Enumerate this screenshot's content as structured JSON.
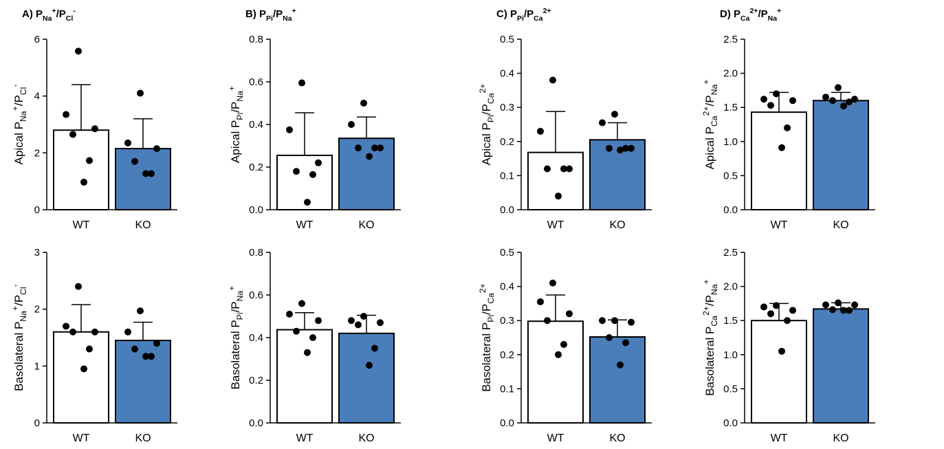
{
  "colors": {
    "wt_fill": "#ffffff",
    "ko_fill": "#4a7ebb",
    "stroke": "#000000",
    "point": "#000000"
  },
  "chart_data": [
    {
      "type": "bar",
      "panel_letter": "A)",
      "row": "Apical",
      "title": [
        [
          "P",
          ""
        ],
        [
          "Na",
          "sub"
        ],
        [
          "+",
          "sup"
        ],
        [
          "/P",
          ""
        ],
        [
          "Cl",
          "sub"
        ],
        [
          "-",
          "sup"
        ]
      ],
      "ylabel": [
        [
          "Apical P",
          ""
        ],
        [
          "Na",
          "sub"
        ],
        [
          "+",
          "sup"
        ],
        [
          "/P",
          ""
        ],
        [
          "Cl",
          "sub"
        ],
        [
          "-",
          "sup"
        ]
      ],
      "categories": [
        "WT",
        "KO"
      ],
      "ylim": [
        0,
        6
      ],
      "yticks": [
        "0",
        "2",
        "4",
        "6"
      ],
      "bar_values": [
        2.8,
        2.15
      ],
      "error_sd": [
        1.6,
        1.05
      ],
      "points": [
        [
          5.58,
          3.35,
          2.85,
          2.65,
          1.73,
          0.97
        ],
        [
          4.1,
          2.35,
          2.15,
          1.7,
          1.27,
          1.27
        ]
      ]
    },
    {
      "type": "bar",
      "panel_letter": "B)",
      "row": "Apical",
      "title": [
        [
          "P",
          ""
        ],
        [
          "Pi",
          "sub"
        ],
        [
          "/P",
          ""
        ],
        [
          "Na",
          "sub"
        ],
        [
          "+",
          "sup"
        ]
      ],
      "ylabel": [
        [
          "Apical P",
          ""
        ],
        [
          "Pi",
          "sub"
        ],
        [
          "/P",
          ""
        ],
        [
          "Na",
          "sub"
        ],
        [
          "+",
          "sup"
        ]
      ],
      "categories": [
        "WT",
        "KO"
      ],
      "ylim": [
        0,
        0.8
      ],
      "yticks": [
        "0.0",
        "0.2",
        "0.4",
        "0.6",
        "0.8"
      ],
      "bar_values": [
        0.255,
        0.335
      ],
      "error_sd": [
        0.2,
        0.1
      ],
      "points": [
        [
          0.595,
          0.375,
          0.22,
          0.18,
          0.165,
          0.035
        ],
        [
          0.5,
          0.4,
          0.29,
          0.29,
          0.29,
          0.25
        ]
      ]
    },
    {
      "type": "bar",
      "panel_letter": "C)",
      "row": "Apical",
      "title": [
        [
          "P",
          ""
        ],
        [
          "Pi",
          "sub"
        ],
        [
          "/P",
          ""
        ],
        [
          "Ca",
          "sub"
        ],
        [
          "2+",
          "sup"
        ]
      ],
      "ylabel": [
        [
          "Apical P",
          ""
        ],
        [
          "Pi",
          "sub"
        ],
        [
          "/P",
          ""
        ],
        [
          "Ca",
          "sub"
        ],
        [
          "2+",
          "sup"
        ]
      ],
      "categories": [
        "WT",
        "KO"
      ],
      "ylim": [
        0,
        0.5
      ],
      "yticks": [
        "0.0",
        "0.1",
        "0.2",
        "0.3",
        "0.4",
        "0.5"
      ],
      "bar_values": [
        0.168,
        0.205
      ],
      "error_sd": [
        0.12,
        0.05
      ],
      "points": [
        [
          0.38,
          0.23,
          0.12,
          0.12,
          0.12,
          0.04
        ],
        [
          0.28,
          0.255,
          0.18,
          0.18,
          0.18,
          0.175
        ]
      ]
    },
    {
      "type": "bar",
      "panel_letter": "D)",
      "row": "Apical",
      "title": [
        [
          "P",
          ""
        ],
        [
          "Ca",
          "sub"
        ],
        [
          "2+",
          "sup"
        ],
        [
          "/P",
          ""
        ],
        [
          "Na",
          "sub"
        ],
        [
          "+",
          "sup"
        ]
      ],
      "ylabel": [
        [
          "Apical P",
          ""
        ],
        [
          "Ca",
          "sub"
        ],
        [
          "2+",
          "sup"
        ],
        [
          "/P",
          ""
        ],
        [
          "Na",
          "sub"
        ],
        [
          "+",
          "sup"
        ]
      ],
      "categories": [
        "WT",
        "KO"
      ],
      "ylim": [
        0,
        2.5
      ],
      "yticks": [
        "0.0",
        "0.5",
        "1.0",
        "1.5",
        "2.0",
        "2.5"
      ],
      "bar_values": [
        1.43,
        1.6
      ],
      "error_sd": [
        0.29,
        0.12
      ],
      "points": [
        [
          1.7,
          1.62,
          1.6,
          1.53,
          1.2,
          0.91
        ],
        [
          1.79,
          1.65,
          1.62,
          1.6,
          1.58,
          1.52
        ]
      ]
    },
    {
      "type": "bar",
      "panel_letter": "",
      "row": "Basolateral",
      "title": [],
      "ylabel": [
        [
          "Basolateral P",
          ""
        ],
        [
          "Na",
          "sub"
        ],
        [
          "+",
          "sup"
        ],
        [
          "/P",
          ""
        ],
        [
          "Cl",
          "sub"
        ],
        [
          "-",
          "sup"
        ]
      ],
      "categories": [
        "WT",
        "KO"
      ],
      "ylim": [
        0,
        3
      ],
      "yticks": [
        "0",
        "1",
        "2",
        "3"
      ],
      "bar_values": [
        1.6,
        1.45
      ],
      "error_sd": [
        0.48,
        0.32
      ],
      "points": [
        [
          2.4,
          1.7,
          1.6,
          1.6,
          1.3,
          0.95
        ],
        [
          1.97,
          1.6,
          1.4,
          1.3,
          1.17,
          1.17
        ]
      ]
    },
    {
      "type": "bar",
      "panel_letter": "",
      "row": "Basolateral",
      "title": [],
      "ylabel": [
        [
          "Basolateral P",
          ""
        ],
        [
          "Pi",
          "sub"
        ],
        [
          "/P",
          ""
        ],
        [
          "Na",
          "sub"
        ],
        [
          "+",
          "sup"
        ]
      ],
      "categories": [
        "WT",
        "KO"
      ],
      "ylim": [
        0,
        0.8
      ],
      "yticks": [
        "0.0",
        "0.2",
        "0.4",
        "0.6",
        "0.8"
      ],
      "bar_values": [
        0.437,
        0.42
      ],
      "error_sd": [
        0.08,
        0.085
      ],
      "points": [
        [
          0.56,
          0.51,
          0.48,
          0.43,
          0.4,
          0.33
        ],
        [
          0.5,
          0.48,
          0.47,
          0.46,
          0.35,
          0.27
        ]
      ]
    },
    {
      "type": "bar",
      "panel_letter": "",
      "row": "Basolateral",
      "title": [],
      "ylabel": [
        [
          "Basolateral P",
          ""
        ],
        [
          "Pi",
          "sub"
        ],
        [
          "/P",
          ""
        ],
        [
          "Ca",
          "sub"
        ],
        [
          "2+",
          "sup"
        ]
      ],
      "categories": [
        "WT",
        "KO"
      ],
      "ylim": [
        0,
        0.5
      ],
      "yticks": [
        "0.0",
        "0.1",
        "0.2",
        "0.3",
        "0.4",
        "0.5"
      ],
      "bar_values": [
        0.298,
        0.252
      ],
      "error_sd": [
        0.077,
        0.05
      ],
      "points": [
        [
          0.41,
          0.355,
          0.32,
          0.3,
          0.23,
          0.2
        ],
        [
          0.3,
          0.3,
          0.295,
          0.25,
          0.235,
          0.17
        ]
      ]
    },
    {
      "type": "bar",
      "panel_letter": "",
      "row": "Basolateral",
      "title": [],
      "ylabel": [
        [
          "Basolateral P",
          ""
        ],
        [
          "Ca",
          "sub"
        ],
        [
          "2+",
          "sup"
        ],
        [
          "/P",
          ""
        ],
        [
          "Na",
          "sub"
        ],
        [
          "+",
          "sup"
        ]
      ],
      "categories": [
        "WT",
        "KO"
      ],
      "ylim": [
        0,
        2.5
      ],
      "yticks": [
        "0.0",
        "0.5",
        "1.0",
        "1.5",
        "2.0",
        "2.5"
      ],
      "bar_values": [
        1.5,
        1.67
      ],
      "error_sd": [
        0.25,
        0.09
      ],
      "points": [
        [
          1.72,
          1.7,
          1.65,
          1.6,
          1.5,
          1.05
        ],
        [
          1.76,
          1.73,
          1.73,
          1.66,
          1.65,
          1.65
        ]
      ]
    }
  ]
}
